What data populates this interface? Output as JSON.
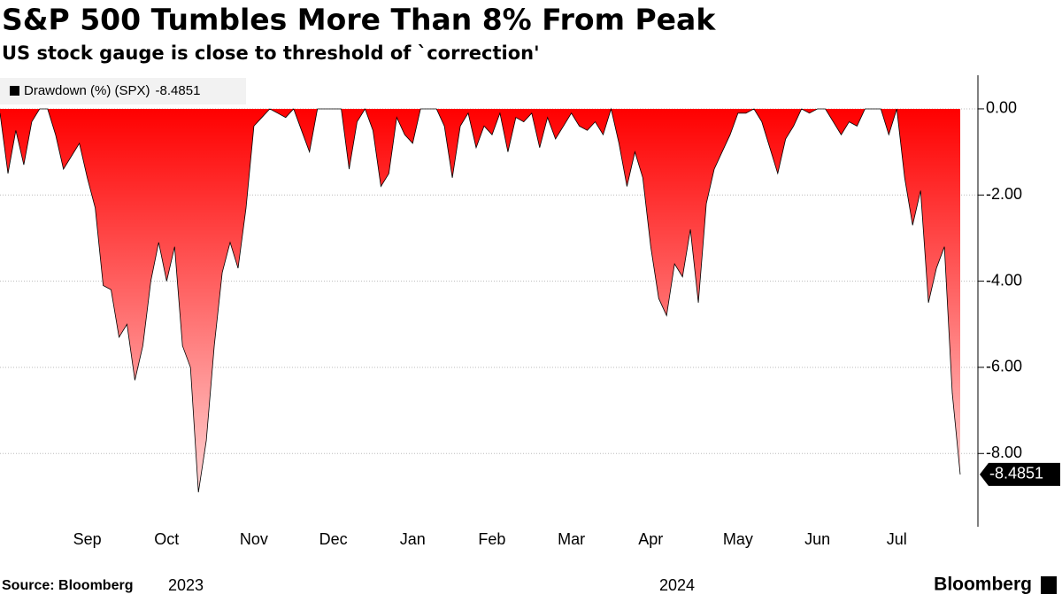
{
  "chart_data": {
    "type": "area",
    "title": "S&P 500 Tumbles More Than 8% From Peak",
    "subtitle": "US stock gauge is close to threshold of `correction'",
    "source": "Source: Bloomberg",
    "brand": "Bloomberg",
    "year_labels": [
      "2023",
      "2024"
    ],
    "categories": [
      null,
      null,
      null,
      null,
      null,
      null,
      null,
      null,
      null,
      null,
      null,
      "Sep",
      null,
      null,
      null,
      null,
      null,
      null,
      null,
      null,
      null,
      "Oct",
      null,
      null,
      null,
      null,
      null,
      null,
      null,
      null,
      null,
      null,
      "Nov",
      null,
      null,
      null,
      null,
      null,
      null,
      null,
      null,
      null,
      "Dec",
      null,
      null,
      null,
      null,
      null,
      null,
      null,
      null,
      null,
      "Jan",
      null,
      null,
      null,
      null,
      null,
      null,
      null,
      null,
      null,
      "Feb",
      null,
      null,
      null,
      null,
      null,
      null,
      null,
      null,
      null,
      "Mar",
      null,
      null,
      null,
      null,
      null,
      null,
      null,
      null,
      null,
      "Apr",
      null,
      null,
      null,
      null,
      null,
      null,
      null,
      null,
      null,
      null,
      "May",
      null,
      null,
      null,
      null,
      null,
      null,
      null,
      null,
      null,
      "Jun",
      null,
      null,
      null,
      null,
      null,
      null,
      null,
      null,
      null,
      "Jul",
      null,
      null,
      null,
      null,
      null,
      null,
      null,
      null
    ],
    "series": [
      {
        "name": "Drawdown (%) (SPX)",
        "color": "#ff0000",
        "values": [
          -0.1,
          -1.5,
          -0.5,
          -1.3,
          -0.3,
          0,
          0,
          -0.6,
          -1.4,
          -1.1,
          -0.8,
          -1.6,
          -2.3,
          -4.1,
          -4.2,
          -5.3,
          -5.0,
          -6.3,
          -5.5,
          -4.0,
          -3.1,
          -4.0,
          -3.2,
          -5.5,
          -6.0,
          -8.9,
          -7.7,
          -5.5,
          -3.8,
          -3.1,
          -3.7,
          -2.3,
          -0.4,
          -0.2,
          0,
          -0.1,
          -0.2,
          0,
          -0.5,
          -1.0,
          0,
          0,
          0,
          0,
          -1.4,
          -0.3,
          0,
          -0.5,
          -1.8,
          -1.5,
          -0.2,
          -0.6,
          -0.8,
          0,
          0,
          0,
          -0.4,
          -1.6,
          -0.4,
          -0.1,
          -0.9,
          -0.4,
          -0.6,
          -0.1,
          -1.0,
          -0.2,
          -0.3,
          -0.1,
          -0.9,
          -0.2,
          -0.7,
          -0.4,
          -0.1,
          -0.4,
          -0.5,
          -0.3,
          -0.6,
          0,
          -0.8,
          -1.8,
          -1.0,
          -1.6,
          -3.2,
          -4.4,
          -4.8,
          -3.6,
          -3.9,
          -2.8,
          -4.5,
          -2.2,
          -1.4,
          -1.0,
          -0.6,
          -0.1,
          -0.1,
          0,
          -0.3,
          -0.9,
          -1.5,
          -0.7,
          -0.4,
          0,
          -0.1,
          0,
          0,
          -0.3,
          -0.6,
          -0.3,
          -0.4,
          0,
          0,
          0,
          -0.6,
          0,
          -1.6,
          -2.7,
          -1.9,
          -4.5,
          -3.7,
          -3.2,
          -6.6,
          -8.4851
        ]
      }
    ],
    "ylim": [
      -9.7,
      0.78
    ],
    "yticks": [
      {
        "value": 0,
        "label": "0.00"
      },
      {
        "value": -2,
        "label": "-2.00"
      },
      {
        "value": -4,
        "label": "-4.00"
      },
      {
        "value": -6,
        "label": "-6.00"
      },
      {
        "value": -8,
        "label": "-8.00"
      }
    ],
    "grid": true
  }
}
